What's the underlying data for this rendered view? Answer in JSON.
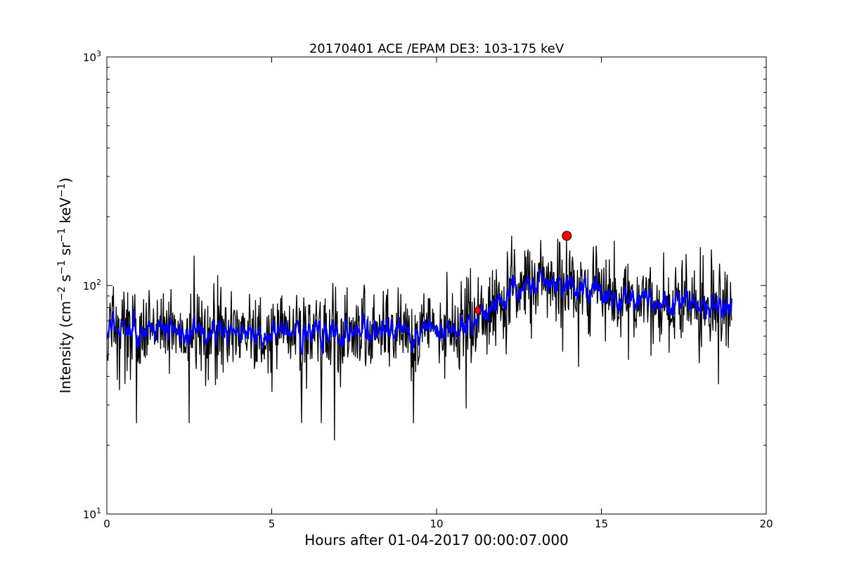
{
  "chart_data": {
    "type": "line",
    "title": "20170401 ACE /EPAM DE3: 103-175 keV",
    "xlabel": "Hours after 01-04-2017 00:00:07.000",
    "ylabel": {
      "base": "Intensity (cm",
      "exp1": "−2",
      "mid1": " s",
      "exp2": "−1",
      "mid2": " sr",
      "exp3": "−1",
      "mid3": " keV",
      "exp4": "−1",
      "end": ")"
    },
    "xlim": [
      0,
      20
    ],
    "ylim": [
      10,
      1000
    ],
    "yscale": "log",
    "grid": false,
    "x_ticks": [
      0,
      5,
      10,
      15,
      20
    ],
    "y_ticks": [
      {
        "value": 10,
        "base": "10",
        "exp": "1"
      },
      {
        "value": 100,
        "base": "10",
        "exp": "2"
      },
      {
        "value": 1000,
        "base": "10",
        "exp": "3"
      }
    ],
    "series": [
      {
        "color": "#000000",
        "style": "raw",
        "x_range": [
          0.0,
          18.95
        ],
        "level_profile": [
          [
            0,
            65
          ],
          [
            4,
            62
          ],
          [
            8,
            63
          ],
          [
            10.5,
            62
          ],
          [
            11.2,
            70
          ],
          [
            12.0,
            88
          ],
          [
            13.0,
            103
          ],
          [
            14.0,
            102
          ],
          [
            15.0,
            90
          ],
          [
            17.0,
            85
          ],
          [
            18.95,
            80
          ]
        ],
        "spikes": [
          [
            0.9,
            25
          ],
          [
            2.5,
            25
          ],
          [
            6.9,
            21
          ],
          [
            5.9,
            25
          ],
          [
            6.5,
            25
          ],
          [
            9.3,
            25
          ],
          [
            10.9,
            29
          ],
          [
            2.65,
            135
          ],
          [
            13.95,
            160
          ],
          [
            14.75,
            148
          ],
          [
            14.3,
            44
          ],
          [
            18.55,
            37
          ]
        ]
      },
      {
        "color": "#0000ff",
        "style": "smoothed",
        "x_range": [
          0.0,
          18.95
        ],
        "level_profile": [
          [
            0,
            65
          ],
          [
            4,
            62
          ],
          [
            8,
            63
          ],
          [
            10.5,
            62
          ],
          [
            11.2,
            70
          ],
          [
            12.0,
            88
          ],
          [
            13.0,
            103
          ],
          [
            14.0,
            102
          ],
          [
            15.0,
            90
          ],
          [
            17.0,
            85
          ],
          [
            18.95,
            80
          ]
        ]
      }
    ],
    "markers": [
      {
        "shape": "diamond",
        "color": "#ff0000",
        "x": 11.25,
        "y": 78
      },
      {
        "shape": "circle",
        "color": "#ff0000",
        "x": 13.95,
        "y": 165
      }
    ]
  }
}
